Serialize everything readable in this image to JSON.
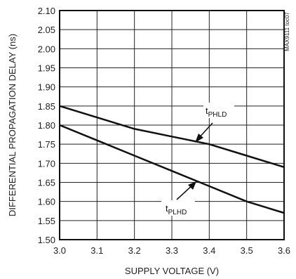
{
  "chart_data": {
    "type": "line",
    "title": "",
    "xlabel": "SUPPLY VOLTAGE (V)",
    "ylabel": "DIFFERENTIAL PROPAGATION DELAY (ns)",
    "xlim": [
      3.0,
      3.6
    ],
    "ylim": [
      1.5,
      2.1
    ],
    "x_ticks": [
      "3.0",
      "3.1",
      "3.2",
      "3.3",
      "3.4",
      "3.5",
      "3.6"
    ],
    "y_ticks": [
      "1.50",
      "1.55",
      "1.60",
      "1.65",
      "1.70",
      "1.75",
      "1.80",
      "1.85",
      "1.90",
      "1.95",
      "2.00",
      "2.05",
      "2.10"
    ],
    "grid": true,
    "series": [
      {
        "name": "tPHLD",
        "label_main": "t",
        "label_sub": "PHLD",
        "x": [
          3.0,
          3.1,
          3.2,
          3.3,
          3.4,
          3.5,
          3.6
        ],
        "values": [
          1.85,
          1.82,
          1.79,
          1.77,
          1.75,
          1.72,
          1.69
        ]
      },
      {
        "name": "tPLHD",
        "label_main": "t",
        "label_sub": "PLHD",
        "x": [
          3.0,
          3.1,
          3.2,
          3.3,
          3.4,
          3.5,
          3.6
        ],
        "values": [
          1.8,
          1.76,
          1.72,
          1.68,
          1.64,
          1.6,
          1.57
        ]
      }
    ],
    "figure_id": "MAX9111 toc07"
  }
}
